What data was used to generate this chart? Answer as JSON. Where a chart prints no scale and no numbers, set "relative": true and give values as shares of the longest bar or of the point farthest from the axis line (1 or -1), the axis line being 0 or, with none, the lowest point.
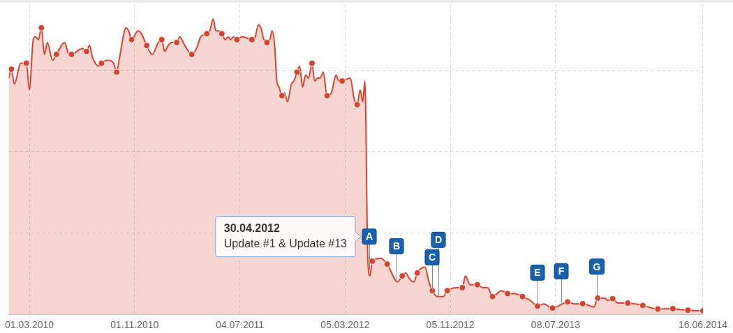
{
  "chart_data": {
    "type": "area",
    "relative": true,
    "x": [
      "2010-01-12",
      "2010-01-18",
      "2010-01-25",
      "2010-02-09",
      "2010-02-22",
      "2010-03-01",
      "2010-03-10",
      "2010-03-15",
      "2010-03-22",
      "2010-03-29",
      "2010-04-05",
      "2010-04-12",
      "2010-04-24",
      "2010-05-03",
      "2010-05-22",
      "2010-06-01",
      "2010-06-07",
      "2010-06-19",
      "2010-07-02",
      "2010-07-12",
      "2010-07-19",
      "2010-07-26",
      "2010-08-10",
      "2010-08-16",
      "2010-08-31",
      "2010-09-13",
      "2010-09-20",
      "2010-09-27",
      "2010-10-12",
      "2010-10-18",
      "2010-10-25",
      "2010-11-09",
      "2010-11-17",
      "2010-11-29",
      "2010-12-12",
      "2010-12-26",
      "2011-01-03",
      "2011-01-10",
      "2011-01-18",
      "2011-01-26",
      "2011-02-07",
      "2011-02-14",
      "2011-02-26",
      "2011-03-14",
      "2011-03-25",
      "2011-04-04",
      "2011-04-18",
      "2011-04-25",
      "2011-05-03",
      "2011-05-09",
      "2011-05-16",
      "2011-05-23",
      "2011-05-31",
      "2011-06-07",
      "2011-06-12",
      "2011-06-19",
      "2011-06-27",
      "2011-07-09",
      "2011-08-01",
      "2011-08-09",
      "2011-08-16",
      "2011-08-22",
      "2011-08-29",
      "2011-09-05",
      "2011-09-12",
      "2011-09-17",
      "2011-09-23",
      "2011-09-28",
      "2011-10-03",
      "2011-10-10",
      "2011-10-16",
      "2011-10-23",
      "2011-11-01",
      "2011-11-07",
      "2011-11-14",
      "2011-11-20",
      "2011-11-27",
      "2011-12-04",
      "2011-12-11",
      "2011-12-19",
      "2011-12-25",
      "2012-01-01",
      "2012-01-07",
      "2012-01-14",
      "2012-01-23",
      "2012-02-02",
      "2012-02-13",
      "2012-02-19",
      "2012-02-27",
      "2012-03-17",
      "2012-03-26",
      "2012-04-02",
      "2012-04-09",
      "2012-04-15",
      "2012-04-20",
      "2012-04-27",
      "2012-05-02",
      "2012-05-07",
      "2012-05-27",
      "2012-06-11",
      "2012-07-05",
      "2012-07-16",
      "2012-07-24",
      "2012-08-02",
      "2012-08-12",
      "2012-08-20",
      "2012-09-07",
      "2012-09-16",
      "2012-09-24",
      "2012-10-06",
      "2012-10-19",
      "2012-10-29",
      "2012-11-22",
      "2012-12-03",
      "2012-12-10",
      "2012-12-21",
      "2013-01-07",
      "2013-01-20",
      "2013-01-31",
      "2013-02-11",
      "2013-03-04",
      "2013-03-18",
      "2013-04-04",
      "2013-04-22",
      "2013-05-10",
      "2013-05-27",
      "2013-06-10",
      "2013-07-01",
      "2013-07-14",
      "2013-08-05",
      "2013-08-22",
      "2013-09-09",
      "2013-09-22",
      "2013-10-05",
      "2013-10-14",
      "2013-10-31",
      "2013-11-06",
      "2013-11-18",
      "2013-11-29",
      "2013-12-23",
      "2014-01-10",
      "2014-01-27",
      "2014-02-15",
      "2014-03-03",
      "2014-04-07",
      "2014-04-24",
      "2014-05-12",
      "2014-05-30",
      "2014-06-16"
    ],
    "series": [
      {
        "type": "area",
        "color": "#d9422e",
        "marker": "none",
        "values": [
          0.8,
          0.83,
          0.78,
          0.85,
          0.85,
          0.76,
          0.93,
          0.94,
          0.93,
          0.97,
          0.88,
          0.92,
          0.86,
          0.88,
          0.92,
          0.88,
          0.88,
          0.89,
          0.9,
          0.89,
          0.91,
          0.87,
          0.84,
          0.85,
          0.86,
          0.85,
          0.82,
          0.87,
          0.97,
          0.96,
          0.93,
          0.96,
          0.95,
          0.91,
          0.88,
          0.92,
          0.93,
          0.89,
          0.91,
          0.92,
          0.92,
          0.94,
          0.91,
          0.88,
          0.9,
          0.94,
          0.95,
          0.96,
          1.0,
          0.96,
          0.96,
          0.95,
          0.93,
          0.94,
          0.93,
          0.94,
          0.93,
          0.94,
          0.93,
          0.94,
          0.98,
          0.97,
          0.93,
          0.92,
          0.93,
          0.96,
          0.91,
          0.79,
          0.77,
          0.74,
          0.75,
          0.72,
          0.78,
          0.79,
          0.82,
          0.84,
          0.77,
          0.81,
          0.8,
          0.85,
          0.79,
          0.8,
          0.8,
          0.82,
          0.74,
          0.75,
          0.81,
          0.79,
          0.79,
          0.8,
          0.73,
          0.71,
          0.76,
          0.72,
          0.79,
          0.18,
          0.13,
          0.18,
          0.19,
          0.17,
          0.11,
          0.13,
          0.14,
          0.12,
          0.11,
          0.14,
          0.16,
          0.11,
          0.08,
          0.06,
          0.06,
          0.08,
          0.09,
          0.09,
          0.13,
          0.1,
          0.1,
          0.09,
          0.09,
          0.06,
          0.08,
          0.07,
          0.07,
          0.06,
          0.047,
          0.028,
          0.035,
          0.021,
          0.028,
          0.042,
          0.035,
          0.036,
          0.031,
          0.025,
          0.055,
          0.055,
          0.047,
          0.053,
          0.039,
          0.038,
          0.035,
          0.03,
          0.022,
          0.018,
          0.019,
          0.016,
          0.014,
          0.012,
          0.012
        ]
      },
      {
        "type": "scatter",
        "color": "#d9422e",
        "marker": "circle",
        "x": [
          "2010-01-18",
          "2010-02-22",
          "2010-03-29",
          "2010-05-03",
          "2010-06-07",
          "2010-07-12",
          "2010-08-16",
          "2010-09-20",
          "2010-10-25",
          "2010-11-29",
          "2011-01-03",
          "2011-02-07",
          "2011-03-14",
          "2011-04-18",
          "2011-05-23",
          "2011-06-27",
          "2011-08-01",
          "2011-09-05",
          "2011-10-10",
          "2011-11-14",
          "2011-12-19",
          "2012-01-23",
          "2012-02-27",
          "2012-04-02",
          "2012-05-07",
          "2012-06-11",
          "2012-07-16",
          "2012-08-20",
          "2012-09-24",
          "2012-10-29",
          "2012-12-03",
          "2013-01-07",
          "2013-02-11",
          "2013-03-18",
          "2013-04-22",
          "2013-05-27",
          "2013-07-01",
          "2013-08-05",
          "2013-09-09",
          "2013-10-14",
          "2013-11-18",
          "2013-12-23",
          "2014-01-27",
          "2014-03-03",
          "2014-04-07",
          "2014-05-12",
          "2014-06-16"
        ],
        "values": [
          0.83,
          0.85,
          0.97,
          0.88,
          0.88,
          0.89,
          0.85,
          0.82,
          0.93,
          0.91,
          0.93,
          0.92,
          0.88,
          0.95,
          0.95,
          0.93,
          0.93,
          0.92,
          0.74,
          0.82,
          0.85,
          0.74,
          0.79,
          0.71,
          0.18,
          0.17,
          0.13,
          0.14,
          0.08,
          0.08,
          0.09,
          0.1,
          0.06,
          0.07,
          0.06,
          0.028,
          0.021,
          0.042,
          0.036,
          0.055,
          0.053,
          0.038,
          0.03,
          0.018,
          0.019,
          0.014,
          0.012
        ]
      }
    ],
    "xlim": [
      "2010-01-12",
      "2014-06-16"
    ],
    "xticks": [
      {
        "value": "2010-03-01",
        "label": "01.03.2010"
      },
      {
        "value": "2010-11-01",
        "label": "01.11.2010"
      },
      {
        "value": "2011-07-04",
        "label": "04.07.2011"
      },
      {
        "value": "2012-03-05",
        "label": "05.03.2012"
      },
      {
        "value": "2012-11-05",
        "label": "05.11.2012"
      },
      {
        "value": "2013-07-08",
        "label": "08.07.2013"
      },
      {
        "value": "2014-06-16",
        "label": "16.06.2014"
      }
    ],
    "grid": true,
    "tick_labels": "x",
    "annotations": [
      {
        "text": "A",
        "x": "2012-04-30"
      },
      {
        "text": "B",
        "x": "2012-07-02"
      },
      {
        "text": "C",
        "x": "2012-09-24"
      },
      {
        "text": "D",
        "x": "2012-10-08"
      },
      {
        "text": "E",
        "x": "2013-05-27"
      },
      {
        "text": "F",
        "x": "2013-07-21"
      },
      {
        "text": "G",
        "x": "2013-10-12"
      },
      {
        "text": "30.04.2012\nUpdate #1 & Update #13",
        "x": "2012-04-30"
      }
    ]
  }
}
